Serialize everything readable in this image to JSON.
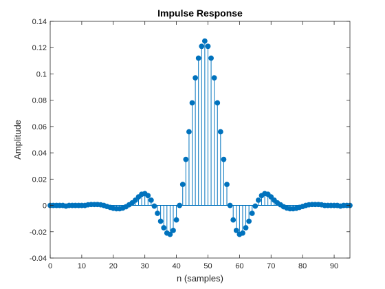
{
  "chart_data": {
    "type": "stem",
    "title": "Impulse Response",
    "xlabel": "n (samples)",
    "ylabel": "Amplitude",
    "xlim": [
      0,
      95
    ],
    "ylim": [
      -0.04,
      0.14
    ],
    "xticks": [
      0,
      10,
      20,
      30,
      40,
      50,
      60,
      70,
      80,
      90
    ],
    "yticks": [
      -0.04,
      -0.02,
      0,
      0.02,
      0.04,
      0.06,
      0.08,
      0.1,
      0.12,
      0.14
    ],
    "grid": false,
    "series_color": "#0072BD",
    "series": [
      {
        "x": [
          0,
          1,
          2,
          3,
          4,
          5,
          6,
          7,
          8,
          9,
          10,
          11,
          12,
          13,
          14,
          15,
          16,
          17,
          18,
          19,
          20,
          21,
          22,
          23,
          24,
          25,
          26,
          27,
          28,
          29,
          30,
          31,
          32,
          33,
          34,
          35,
          36,
          37,
          38,
          39,
          40,
          41,
          42,
          43,
          44,
          45,
          46,
          47,
          48,
          49,
          50,
          51,
          52,
          53,
          54,
          55,
          56,
          57,
          58,
          59,
          60,
          61,
          62,
          63,
          64,
          65,
          66,
          67,
          68,
          69,
          70,
          71,
          72,
          73,
          74,
          75,
          76,
          77,
          78,
          79,
          80,
          81,
          82,
          83,
          84,
          85,
          86,
          87,
          88,
          89,
          90,
          91,
          92,
          93,
          94,
          95
        ],
        "values": [
          0.0,
          0.0,
          0.0,
          0.0,
          0.0,
          -0.0005,
          0.0,
          0.0,
          0.0,
          0.0,
          0.0,
          0.0,
          0.0005,
          0.0007,
          0.0007,
          0.0007,
          0.0005,
          0.0,
          -0.0008,
          -0.0015,
          -0.0022,
          -0.0025,
          -0.0025,
          -0.002,
          -0.001,
          0.0005,
          0.002,
          0.004,
          0.0065,
          0.0085,
          0.009,
          0.0075,
          0.004,
          -0.0005,
          -0.006,
          -0.012,
          -0.017,
          -0.021,
          -0.022,
          -0.019,
          -0.011,
          0.0,
          0.016,
          0.035,
          0.056,
          0.078,
          0.097,
          0.112,
          0.121,
          0.125,
          0.121,
          0.112,
          0.097,
          0.078,
          0.056,
          0.035,
          0.016,
          0.0,
          -0.011,
          -0.019,
          -0.022,
          -0.021,
          -0.017,
          -0.012,
          -0.006,
          -0.0005,
          0.004,
          0.0075,
          0.009,
          0.0085,
          0.0065,
          0.004,
          0.002,
          0.0005,
          -0.001,
          -0.002,
          -0.0025,
          -0.0025,
          -0.0022,
          -0.0015,
          -0.0008,
          0.0,
          0.0005,
          0.0007,
          0.0007,
          0.0007,
          0.0005,
          0.0,
          0.0,
          0.0,
          0.0,
          0.0,
          -0.0005,
          0.0,
          0.0,
          0.0
        ]
      }
    ]
  }
}
